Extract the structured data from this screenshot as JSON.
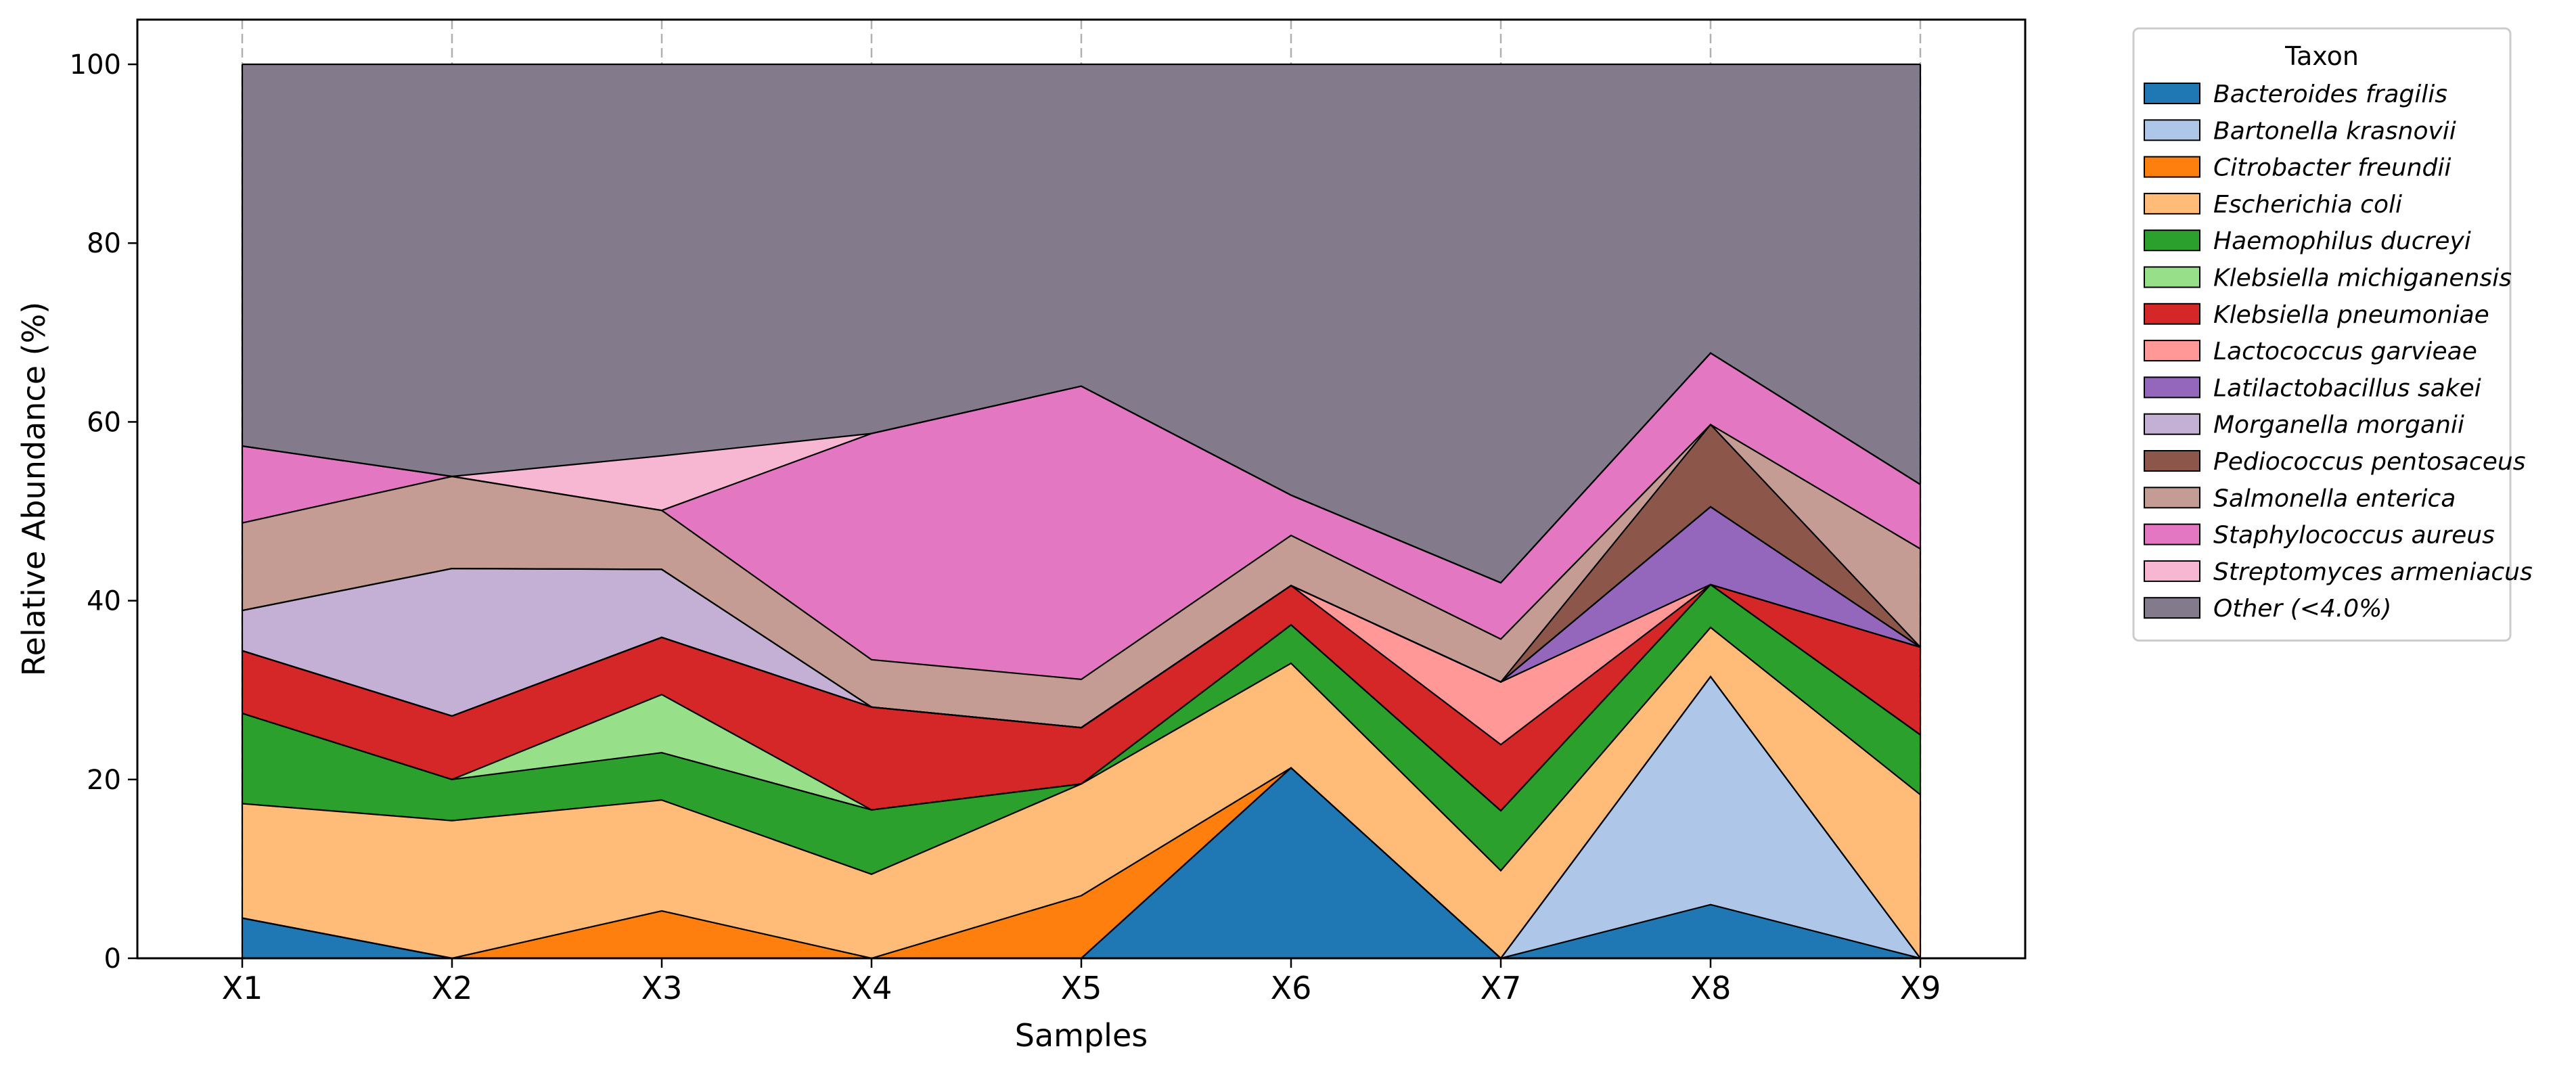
{
  "chart_data": {
    "type": "area",
    "stacked": true,
    "xlabel": "Samples",
    "ylabel": "Relative Abundance (%)",
    "ylim": [
      0,
      105
    ],
    "yticks": [
      0,
      20,
      40,
      60,
      80,
      100
    ],
    "grid": "x-axis dashed vertical lines",
    "legend_title": "Taxon",
    "legend_placement": "outside-right",
    "categories": [
      "X1",
      "X2",
      "X3",
      "X4",
      "X5",
      "X6",
      "X7",
      "X8",
      "X9"
    ],
    "series": [
      {
        "name": "Bacteroides fragilis",
        "color": "#1f77b4",
        "values": [
          4.5,
          0,
          0,
          0,
          0,
          21.3,
          0,
          6.0,
          0
        ]
      },
      {
        "name": "Bartonella krasnovii",
        "color": "#aec7e8",
        "values": [
          0,
          0,
          0,
          0,
          0,
          0,
          0,
          25.5,
          0
        ]
      },
      {
        "name": "Citrobacter freundii",
        "color": "#ff7f0e",
        "values": [
          0,
          0,
          5.3,
          0,
          7.0,
          0,
          0,
          0,
          0
        ]
      },
      {
        "name": "Escherichia coli",
        "color": "#ffbb78",
        "values": [
          12.8,
          15.4,
          12.4,
          9.4,
          12.5,
          11.7,
          9.8,
          5.5,
          18.3
        ]
      },
      {
        "name": "Haemophilus ducreyi",
        "color": "#2ca02c",
        "values": [
          10.1,
          4.6,
          5.3,
          7.2,
          0,
          4.3,
          6.7,
          4.8,
          6.7
        ]
      },
      {
        "name": "Klebsiella michiganensis",
        "color": "#98df8a",
        "values": [
          0,
          0,
          6.5,
          0,
          0,
          0,
          0,
          0,
          0
        ]
      },
      {
        "name": "Klebsiella pneumoniae",
        "color": "#d62728",
        "values": [
          7.0,
          7.1,
          6.4,
          11.5,
          6.3,
          4.4,
          7.4,
          0,
          9.8
        ]
      },
      {
        "name": "Lactococcus garvieae",
        "color": "#ff9896",
        "values": [
          0,
          0,
          0,
          0,
          0,
          0,
          7.0,
          0,
          0
        ]
      },
      {
        "name": "Latilactobacillus sakei",
        "color": "#9467bd",
        "values": [
          0,
          0,
          0,
          0,
          0,
          0,
          0,
          8.7,
          0
        ]
      },
      {
        "name": "Morganella morganii",
        "color": "#c5b0d5",
        "values": [
          4.5,
          16.5,
          7.6,
          0,
          0,
          0,
          0,
          0,
          0
        ]
      },
      {
        "name": "Pediococcus pentosaceus",
        "color": "#8c564b",
        "values": [
          0,
          0,
          0,
          0,
          0,
          0,
          0,
          9.2,
          0
        ]
      },
      {
        "name": "Salmonella enterica",
        "color": "#c49c94",
        "values": [
          9.8,
          10.3,
          6.6,
          5.3,
          5.4,
          5.6,
          4.8,
          0,
          11.0
        ]
      },
      {
        "name": "Staphylococcus aureus",
        "color": "#e377c2",
        "values": [
          8.6,
          0,
          0,
          25.3,
          32.8,
          4.5,
          6.3,
          8.0,
          7.2
        ]
      },
      {
        "name": "Streptomyces armeniacus",
        "color": "#f7b6d2",
        "values": [
          0,
          0,
          6.1,
          0,
          0,
          0,
          0,
          0,
          0
        ]
      },
      {
        "name": "Other (<4.0%)",
        "color": "#837a8c",
        "values": [
          42.7,
          46.1,
          43.8,
          41.3,
          36.0,
          48.2,
          58.0,
          32.3,
          47.0
        ]
      }
    ]
  }
}
